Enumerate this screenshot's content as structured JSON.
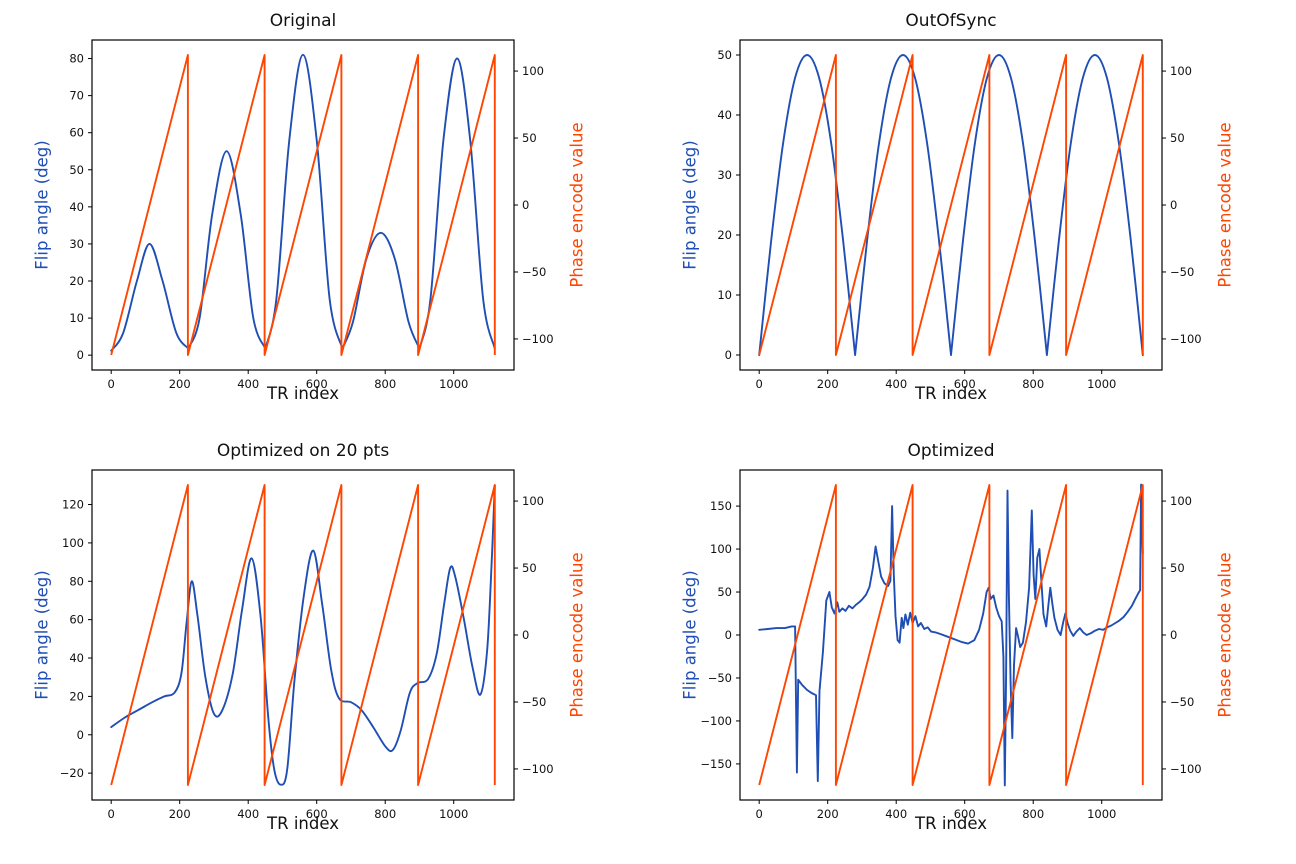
{
  "figure": {
    "background": "#ffffff"
  },
  "colors": {
    "flip_angle": "#1f4eb4",
    "phase_encode": "#ff4500",
    "axis": "#000000",
    "tick_label": "#111111"
  },
  "chart_data": [
    {
      "type": "line",
      "title": "Original",
      "xlabel": "TR index",
      "ylabel_left": "Flip angle (deg)",
      "ylabel_right": "Phase encode value",
      "grid": false,
      "xlim": [
        -56,
        1176
      ],
      "xticks": [
        0,
        200,
        400,
        600,
        800,
        1000
      ],
      "ylim_left": [
        -4,
        85
      ],
      "yticks_left": [
        0,
        10,
        20,
        30,
        40,
        50,
        60,
        70,
        80
      ],
      "ylim_right": [
        -123.2,
        123.2
      ],
      "yticks_right": [
        -100,
        -50,
        0,
        50,
        100
      ],
      "flip_angle": {
        "smooth": true,
        "cusp_below": 2.5,
        "points": [
          [
            0,
            1.2
          ],
          [
            35,
            6
          ],
          [
            75,
            20
          ],
          [
            112,
            30
          ],
          [
            150,
            20
          ],
          [
            190,
            6
          ],
          [
            225,
            1.8
          ],
          [
            258,
            10
          ],
          [
            295,
            38
          ],
          [
            337,
            55
          ],
          [
            378,
            38
          ],
          [
            415,
            10
          ],
          [
            450,
            1.8
          ],
          [
            482,
            15
          ],
          [
            520,
            58
          ],
          [
            560,
            81
          ],
          [
            600,
            58
          ],
          [
            638,
            15
          ],
          [
            675,
            1.8
          ],
          [
            706,
            9
          ],
          [
            745,
            26
          ],
          [
            787,
            33
          ],
          [
            828,
            26
          ],
          [
            868,
            9
          ],
          [
            900,
            1.8
          ],
          [
            932,
            15
          ],
          [
            970,
            58
          ],
          [
            1010,
            80
          ],
          [
            1048,
            58
          ],
          [
            1086,
            15
          ],
          [
            1120,
            1.8
          ]
        ]
      },
      "phase_encode": {
        "points": [
          [
            0,
            -112
          ],
          [
            224,
            112
          ],
          [
            224,
            -112
          ],
          [
            448,
            112
          ],
          [
            448,
            -112
          ],
          [
            672,
            112
          ],
          [
            672,
            -112
          ],
          [
            896,
            112
          ],
          [
            896,
            -112
          ],
          [
            1120,
            112
          ],
          [
            1120,
            -112
          ]
        ]
      }
    },
    {
      "type": "line",
      "title": "OutOfSync",
      "xlabel": "TR index",
      "ylabel_left": "Flip angle (deg)",
      "ylabel_right": "Phase encode value",
      "grid": false,
      "xlim": [
        -56,
        1176
      ],
      "xticks": [
        0,
        200,
        400,
        600,
        800,
        1000
      ],
      "ylim_left": [
        -2.5,
        52.5
      ],
      "yticks_left": [
        0,
        10,
        20,
        30,
        40,
        50
      ],
      "ylim_right": [
        -123.2,
        123.2
      ],
      "yticks_right": [
        -100,
        -50,
        0,
        50,
        100
      ],
      "flip_angle": {
        "smooth": true,
        "cusp_below": 0.3,
        "points": [
          [
            0,
            0
          ],
          [
            35,
            19.1
          ],
          [
            70,
            35.4
          ],
          [
            105,
            46.2
          ],
          [
            140,
            50
          ],
          [
            175,
            46.2
          ],
          [
            210,
            35.4
          ],
          [
            245,
            19.1
          ],
          [
            280,
            0
          ],
          [
            315,
            19.1
          ],
          [
            350,
            35.4
          ],
          [
            385,
            46.2
          ],
          [
            420,
            50
          ],
          [
            455,
            46.2
          ],
          [
            490,
            35.4
          ],
          [
            525,
            19.1
          ],
          [
            560,
            0
          ],
          [
            595,
            19.1
          ],
          [
            630,
            35.4
          ],
          [
            665,
            46.2
          ],
          [
            700,
            50
          ],
          [
            735,
            46.2
          ],
          [
            770,
            35.4
          ],
          [
            805,
            19.1
          ],
          [
            840,
            0
          ],
          [
            875,
            19.1
          ],
          [
            910,
            35.4
          ],
          [
            945,
            46.2
          ],
          [
            980,
            50
          ],
          [
            1015,
            46.2
          ],
          [
            1050,
            35.4
          ],
          [
            1085,
            19.1
          ],
          [
            1120,
            0
          ]
        ]
      },
      "phase_encode": {
        "points": [
          [
            0,
            -112
          ],
          [
            224,
            112
          ],
          [
            224,
            -112
          ],
          [
            448,
            112
          ],
          [
            448,
            -112
          ],
          [
            672,
            112
          ],
          [
            672,
            -112
          ],
          [
            896,
            112
          ],
          [
            896,
            -112
          ],
          [
            1120,
            112
          ],
          [
            1120,
            -112
          ]
        ]
      }
    },
    {
      "type": "line",
      "title": "Optimized on 20 pts",
      "xlabel": "TR index",
      "ylabel_left": "Flip angle (deg)",
      "ylabel_right": "Phase encode value",
      "grid": false,
      "xlim": [
        -56,
        1176
      ],
      "xticks": [
        0,
        200,
        400,
        600,
        800,
        1000
      ],
      "ylim_left": [
        -34,
        138
      ],
      "yticks_left": [
        -20,
        0,
        20,
        40,
        60,
        80,
        100,
        120
      ],
      "ylim_right": [
        -123.2,
        123.2
      ],
      "yticks_right": [
        -100,
        -50,
        0,
        50,
        100
      ],
      "flip_angle": {
        "smooth": true,
        "points": [
          [
            0,
            4
          ],
          [
            40,
            9
          ],
          [
            80,
            13
          ],
          [
            120,
            17
          ],
          [
            155,
            20
          ],
          [
            185,
            22
          ],
          [
            205,
            32
          ],
          [
            220,
            58
          ],
          [
            235,
            80
          ],
          [
            252,
            62
          ],
          [
            275,
            30
          ],
          [
            300,
            11
          ],
          [
            325,
            13
          ],
          [
            355,
            32
          ],
          [
            382,
            65
          ],
          [
            410,
            92
          ],
          [
            436,
            62
          ],
          [
            458,
            10
          ],
          [
            476,
            -18
          ],
          [
            495,
            -26
          ],
          [
            514,
            -18
          ],
          [
            535,
            28
          ],
          [
            562,
            72
          ],
          [
            590,
            96
          ],
          [
            616,
            68
          ],
          [
            642,
            34
          ],
          [
            665,
            19
          ],
          [
            700,
            17
          ],
          [
            730,
            13
          ],
          [
            765,
            4
          ],
          [
            800,
            -6
          ],
          [
            822,
            -8
          ],
          [
            845,
            2
          ],
          [
            872,
            22
          ],
          [
            895,
            27
          ],
          [
            925,
            29
          ],
          [
            950,
            42
          ],
          [
            972,
            68
          ],
          [
            990,
            87
          ],
          [
            1005,
            82
          ],
          [
            1030,
            60
          ],
          [
            1055,
            35
          ],
          [
            1078,
            21
          ],
          [
            1098,
            45
          ],
          [
            1112,
            95
          ],
          [
            1120,
            130
          ]
        ]
      },
      "phase_encode": {
        "points": [
          [
            0,
            -112
          ],
          [
            224,
            112
          ],
          [
            224,
            -112
          ],
          [
            448,
            112
          ],
          [
            448,
            -112
          ],
          [
            672,
            112
          ],
          [
            672,
            -112
          ],
          [
            896,
            112
          ],
          [
            896,
            -112
          ],
          [
            1120,
            112
          ],
          [
            1120,
            -112
          ]
        ]
      }
    },
    {
      "type": "line",
      "title": "Optimized",
      "xlabel": "TR index",
      "ylabel_left": "Flip angle (deg)",
      "ylabel_right": "Phase encode value",
      "grid": false,
      "xlim": [
        -56,
        1176
      ],
      "xticks": [
        0,
        200,
        400,
        600,
        800,
        1000
      ],
      "ylim_left": [
        -192,
        192
      ],
      "yticks_left": [
        -150,
        -100,
        -50,
        0,
        50,
        100,
        150
      ],
      "ylim_right": [
        -123.2,
        123.2
      ],
      "yticks_right": [
        -100,
        -50,
        0,
        50,
        100
      ],
      "flip_angle": {
        "smooth": false,
        "points": [
          [
            0,
            6
          ],
          [
            25,
            7
          ],
          [
            50,
            8
          ],
          [
            75,
            8
          ],
          [
            95,
            10
          ],
          [
            105,
            10
          ],
          [
            110,
            -160
          ],
          [
            114,
            -52
          ],
          [
            125,
            -58
          ],
          [
            140,
            -64
          ],
          [
            155,
            -68
          ],
          [
            166,
            -70
          ],
          [
            171,
            -170
          ],
          [
            176,
            -65
          ],
          [
            186,
            -20
          ],
          [
            196,
            40
          ],
          [
            205,
            50
          ],
          [
            212,
            32
          ],
          [
            220,
            25
          ],
          [
            228,
            38
          ],
          [
            234,
            27
          ],
          [
            243,
            31
          ],
          [
            252,
            28
          ],
          [
            262,
            34
          ],
          [
            272,
            31
          ],
          [
            282,
            35
          ],
          [
            292,
            38
          ],
          [
            302,
            42
          ],
          [
            312,
            47
          ],
          [
            322,
            56
          ],
          [
            332,
            78
          ],
          [
            340,
            103
          ],
          [
            348,
            85
          ],
          [
            356,
            68
          ],
          [
            366,
            60
          ],
          [
            376,
            57
          ],
          [
            383,
            63
          ],
          [
            388,
            150
          ],
          [
            393,
            70
          ],
          [
            398,
            22
          ],
          [
            404,
            -6
          ],
          [
            410,
            -9
          ],
          [
            416,
            20
          ],
          [
            421,
            8
          ],
          [
            427,
            24
          ],
          [
            434,
            12
          ],
          [
            441,
            26
          ],
          [
            448,
            14
          ],
          [
            456,
            22
          ],
          [
            464,
            10
          ],
          [
            472,
            14
          ],
          [
            482,
            7
          ],
          [
            492,
            9
          ],
          [
            502,
            4
          ],
          [
            515,
            3
          ],
          [
            530,
            1
          ],
          [
            550,
            -2
          ],
          [
            570,
            -5
          ],
          [
            590,
            -8
          ],
          [
            610,
            -10
          ],
          [
            628,
            -6
          ],
          [
            642,
            6
          ],
          [
            654,
            25
          ],
          [
            664,
            50
          ],
          [
            670,
            55
          ],
          [
            676,
            42
          ],
          [
            684,
            46
          ],
          [
            692,
            32
          ],
          [
            700,
            22
          ],
          [
            708,
            16
          ],
          [
            713,
            -25
          ],
          [
            717,
            -175
          ],
          [
            721,
            -45
          ],
          [
            725,
            168
          ],
          [
            729,
            45
          ],
          [
            734,
            -55
          ],
          [
            739,
            -120
          ],
          [
            744,
            -35
          ],
          [
            750,
            8
          ],
          [
            756,
            -2
          ],
          [
            762,
            -14
          ],
          [
            770,
            -9
          ],
          [
            779,
            15
          ],
          [
            788,
            55
          ],
          [
            796,
            145
          ],
          [
            801,
            70
          ],
          [
            806,
            42
          ],
          [
            812,
            90
          ],
          [
            818,
            100
          ],
          [
            824,
            62
          ],
          [
            830,
            24
          ],
          [
            838,
            10
          ],
          [
            844,
            34
          ],
          [
            850,
            55
          ],
          [
            856,
            36
          ],
          [
            862,
            20
          ],
          [
            871,
            6
          ],
          [
            880,
            0
          ],
          [
            888,
            16
          ],
          [
            894,
            25
          ],
          [
            900,
            14
          ],
          [
            908,
            5
          ],
          [
            917,
            -1
          ],
          [
            926,
            4
          ],
          [
            936,
            8
          ],
          [
            946,
            3
          ],
          [
            956,
            0
          ],
          [
            968,
            2
          ],
          [
            980,
            5
          ],
          [
            992,
            7
          ],
          [
            1004,
            6
          ],
          [
            1016,
            9
          ],
          [
            1028,
            11
          ],
          [
            1040,
            14
          ],
          [
            1052,
            17
          ],
          [
            1064,
            21
          ],
          [
            1076,
            27
          ],
          [
            1088,
            34
          ],
          [
            1098,
            42
          ],
          [
            1106,
            48
          ],
          [
            1112,
            52
          ],
          [
            1115,
            175
          ],
          [
            1118,
            120
          ],
          [
            1120,
            95
          ]
        ]
      },
      "phase_encode": {
        "points": [
          [
            0,
            -112
          ],
          [
            224,
            112
          ],
          [
            224,
            -112
          ],
          [
            448,
            112
          ],
          [
            448,
            -112
          ],
          [
            672,
            112
          ],
          [
            672,
            -112
          ],
          [
            896,
            112
          ],
          [
            896,
            -112
          ],
          [
            1120,
            112
          ],
          [
            1120,
            -112
          ]
        ]
      }
    }
  ]
}
